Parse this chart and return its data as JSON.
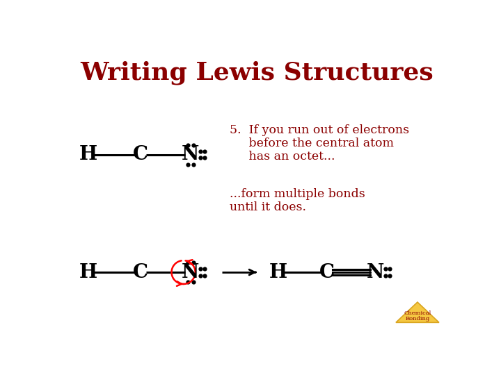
{
  "title": "Writing Lewis Structures",
  "title_color": "#8B0000",
  "title_fontsize": 26,
  "bg_color": "#FFFFFF",
  "text_color": "#000000",
  "dark_red": "#8B0000",
  "point5_line1": "5.  If you run out of electrons",
  "point5_line2": "     before the central atom",
  "point5_line3": "     has an octet...",
  "point5b_line1": "...form multiple bonds",
  "point5b_line2": "until it does.",
  "chem_bond_text1": "Chemical",
  "chem_bond_text2": "Bonding",
  "triangle_gold": "#DAA520",
  "triangle_yellow": "#F5C842"
}
